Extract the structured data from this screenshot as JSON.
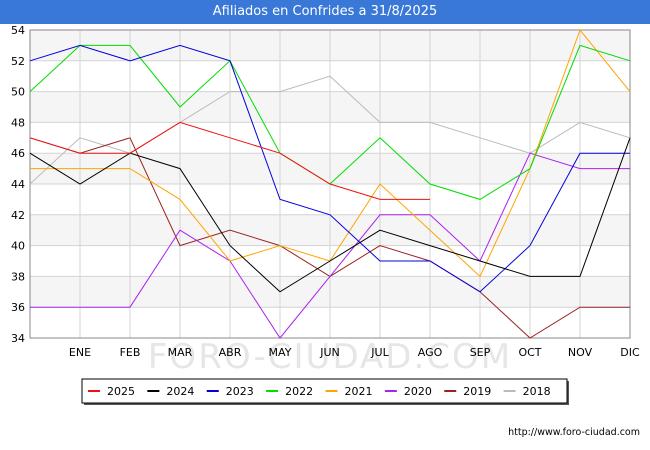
{
  "chart_data": {
    "type": "line",
    "title": "Afiliados en Confrides a 31/8/2025",
    "watermark": "FORO-CIUDAD.COM",
    "source_url": "http://www.foro-ciudad.com",
    "xlabel": "",
    "ylabel": "",
    "categories": [
      "",
      "ENE",
      "FEB",
      "MAR",
      "ABR",
      "MAY",
      "JUN",
      "JUL",
      "AGO",
      "SEP",
      "OCT",
      "NOV",
      "DIC"
    ],
    "ylim": [
      34,
      54
    ],
    "yticks": [
      34,
      36,
      38,
      40,
      42,
      44,
      46,
      48,
      50,
      52,
      54
    ],
    "grid": true,
    "legend_position": "bottom",
    "series": [
      {
        "name": "2025",
        "color": "#ee1111",
        "values": [
          47,
          46,
          46,
          48,
          47,
          46,
          44,
          43,
          43,
          null,
          null,
          null,
          null
        ]
      },
      {
        "name": "2024",
        "color": "#000000",
        "values": [
          46,
          44,
          46,
          45,
          40,
          37,
          39,
          41,
          40,
          39,
          38,
          38,
          47
        ]
      },
      {
        "name": "2023",
        "color": "#0000dd",
        "values": [
          52,
          53,
          52,
          53,
          52,
          43,
          42,
          39,
          39,
          37,
          40,
          46,
          46
        ]
      },
      {
        "name": "2022",
        "color": "#00dd00",
        "values": [
          50,
          53,
          53,
          49,
          52,
          46,
          44,
          47,
          44,
          43,
          45,
          53,
          52
        ]
      },
      {
        "name": "2021",
        "color": "#ffa500",
        "values": [
          45,
          45,
          45,
          43,
          39,
          40,
          39,
          44,
          41,
          38,
          45,
          54,
          50
        ]
      },
      {
        "name": "2020",
        "color": "#aa22ee",
        "values": [
          36,
          36,
          36,
          41,
          39,
          34,
          38,
          42,
          42,
          39,
          46,
          45,
          45
        ]
      },
      {
        "name": "2019",
        "color": "#992222",
        "values": [
          47,
          46,
          47,
          40,
          41,
          40,
          38,
          40,
          39,
          37,
          34,
          36,
          36
        ]
      },
      {
        "name": "2018",
        "color": "#bbbbbb",
        "values": [
          44,
          47,
          46,
          48,
          50,
          50,
          51,
          48,
          48,
          47,
          46,
          48,
          47
        ]
      }
    ]
  }
}
